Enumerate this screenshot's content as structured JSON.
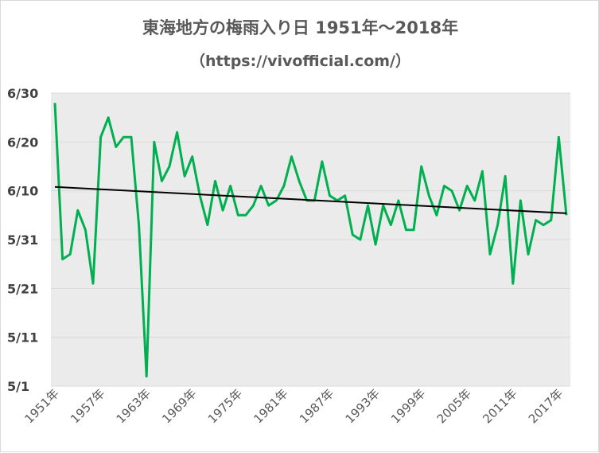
{
  "chart_data": {
    "type": "line",
    "title": "東海地方の梅雨入り日 1951年～2018年",
    "subtitle": "（https://vivofficial.com/）",
    "xlabel": "",
    "ylabel": "",
    "y_tick_labels": [
      "6/30",
      "6/20",
      "6/10",
      "5/31",
      "5/21",
      "5/11",
      "5/1"
    ],
    "y_tick_values": [
      60,
      50,
      40,
      30,
      20,
      10,
      0
    ],
    "ylim": [
      0,
      60
    ],
    "x_tick_labels": [
      "1951年",
      "1957年",
      "1963年",
      "1969年",
      "1975年",
      "1981年",
      "1987年",
      "1993年",
      "1999年",
      "2005年",
      "2011年",
      "2017年"
    ],
    "x_tick_years": [
      1951,
      1957,
      1963,
      1969,
      1975,
      1981,
      1987,
      1993,
      1999,
      2005,
      2011,
      2017
    ],
    "xlim": [
      1951,
      2018
    ],
    "y_encoding": "days after 5/1",
    "grid": true,
    "legend": "none",
    "series": [
      {
        "color": "#00b050",
        "x": [
          1951,
          1952,
          1953,
          1954,
          1955,
          1956,
          1957,
          1958,
          1959,
          1960,
          1961,
          1962,
          1963,
          1964,
          1965,
          1966,
          1967,
          1968,
          1969,
          1970,
          1971,
          1972,
          1973,
          1974,
          1975,
          1976,
          1977,
          1978,
          1979,
          1980,
          1981,
          1982,
          1983,
          1984,
          1985,
          1986,
          1987,
          1988,
          1989,
          1990,
          1991,
          1992,
          1993,
          1994,
          1995,
          1996,
          1997,
          1998,
          1999,
          2000,
          2001,
          2002,
          2003,
          2004,
          2005,
          2006,
          2007,
          2008,
          2009,
          2010,
          2011,
          2012,
          2013,
          2014,
          2015,
          2016,
          2017,
          2018
        ],
        "values": [
          58,
          26,
          27,
          36,
          32,
          21,
          51,
          55,
          49,
          51,
          51,
          33,
          2,
          50,
          42,
          45,
          52,
          43,
          47,
          39,
          33,
          42,
          36,
          41,
          35,
          35,
          37,
          41,
          37,
          38,
          41,
          47,
          42,
          38,
          38,
          46,
          39,
          38,
          39,
          31,
          30,
          37,
          29,
          37,
          33,
          38,
          32,
          32,
          45,
          39,
          35,
          41,
          40,
          36,
          41,
          38,
          44,
          27,
          33,
          43,
          21,
          38,
          27,
          34,
          33,
          34,
          51,
          35
        ]
      },
      {
        "role": "linear trendline",
        "color": "#000000",
        "x": [
          1951,
          2018
        ],
        "values": [
          40.8,
          35.4
        ]
      }
    ]
  }
}
